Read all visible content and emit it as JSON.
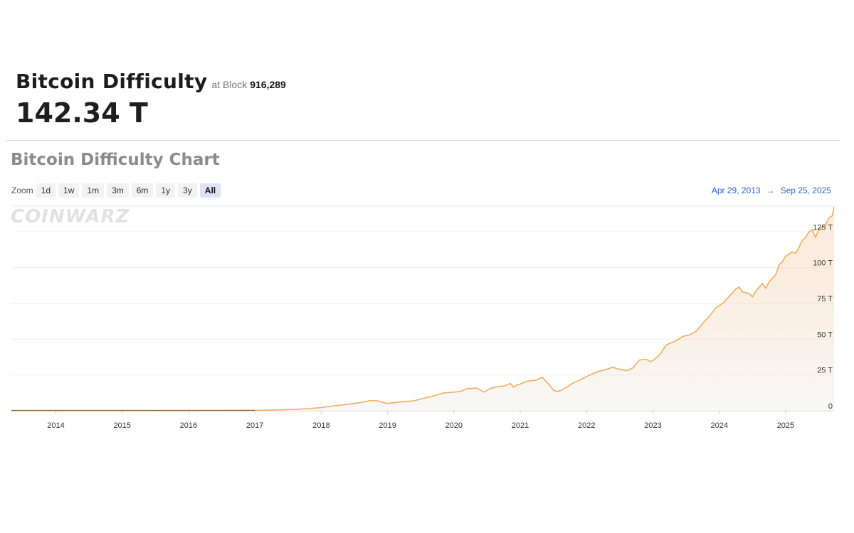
{
  "header": {
    "title": "Bitcoin Difficulty",
    "at_block_label": "at Block",
    "block_number": "916,289",
    "value": "142.34 T"
  },
  "chart_section": {
    "title": "Bitcoin Difficulty Chart",
    "zoom_label": "Zoom",
    "zoom_buttons": [
      "1d",
      "1w",
      "1m",
      "3m",
      "6m",
      "1y",
      "3y",
      "All"
    ],
    "active_zoom": "All",
    "range_start": "Apr 29, 2013",
    "range_end": "Sep 25, 2025",
    "watermark": "COINWARZ",
    "line_color": "#f0ad5c"
  },
  "chart_data": {
    "type": "area",
    "title": "",
    "xlabel": "",
    "ylabel": "",
    "x_tick_labels": [
      "2014",
      "2015",
      "2016",
      "2017",
      "2018",
      "2019",
      "2020",
      "2021",
      "2022",
      "2023",
      "2024",
      "2025"
    ],
    "y_tick_labels": [
      "0",
      "25 T",
      "50 T",
      "75 T",
      "100 T",
      "125 T"
    ],
    "ylim": [
      0,
      143
    ],
    "xlim": [
      2013.33,
      2025.73
    ],
    "grid": true,
    "series": [
      {
        "points": [
          [
            2013.33,
            0
          ],
          [
            2014.0,
            0.002
          ],
          [
            2015.0,
            0.04
          ],
          [
            2016.0,
            0.1
          ],
          [
            2016.5,
            0.2
          ],
          [
            2017.0,
            0.32
          ],
          [
            2017.3,
            0.5
          ],
          [
            2017.6,
            0.92
          ],
          [
            2017.8,
            1.5
          ],
          [
            2018.0,
            2.2
          ],
          [
            2018.2,
            3.5
          ],
          [
            2018.4,
            4.5
          ],
          [
            2018.6,
            5.8
          ],
          [
            2018.75,
            7.2
          ],
          [
            2018.85,
            6.9
          ],
          [
            2018.95,
            5.6
          ],
          [
            2019.0,
            5.1
          ],
          [
            2019.2,
            6.2
          ],
          [
            2019.4,
            7.0
          ],
          [
            2019.55,
            8.8
          ],
          [
            2019.7,
            10.5
          ],
          [
            2019.85,
            12.5
          ],
          [
            2019.95,
            12.8
          ],
          [
            2020.1,
            13.5
          ],
          [
            2020.2,
            15.5
          ],
          [
            2020.35,
            15.8
          ],
          [
            2020.45,
            13.0
          ],
          [
            2020.55,
            15.5
          ],
          [
            2020.65,
            16.8
          ],
          [
            2020.75,
            17.3
          ],
          [
            2020.85,
            19.0
          ],
          [
            2020.9,
            16.5
          ],
          [
            2020.95,
            18.0
          ],
          [
            2021.0,
            18.6
          ],
          [
            2021.1,
            20.6
          ],
          [
            2021.25,
            21.5
          ],
          [
            2021.33,
            23.5
          ],
          [
            2021.4,
            20.0
          ],
          [
            2021.45,
            17.5
          ],
          [
            2021.5,
            14.4
          ],
          [
            2021.55,
            13.5
          ],
          [
            2021.6,
            14.0
          ],
          [
            2021.7,
            16.5
          ],
          [
            2021.8,
            19.5
          ],
          [
            2021.9,
            21.5
          ],
          [
            2022.0,
            24.0
          ],
          [
            2022.15,
            27.0
          ],
          [
            2022.3,
            29.0
          ],
          [
            2022.4,
            30.5
          ],
          [
            2022.45,
            29.5
          ],
          [
            2022.6,
            28.0
          ],
          [
            2022.7,
            30.0
          ],
          [
            2022.8,
            35.5
          ],
          [
            2022.9,
            36.0
          ],
          [
            2022.95,
            34.5
          ],
          [
            2023.0,
            35.0
          ],
          [
            2023.1,
            39.0
          ],
          [
            2023.2,
            46.0
          ],
          [
            2023.35,
            49.0
          ],
          [
            2023.45,
            52.0
          ],
          [
            2023.55,
            53.0
          ],
          [
            2023.65,
            55.5
          ],
          [
            2023.75,
            61.0
          ],
          [
            2023.85,
            66.0
          ],
          [
            2023.95,
            72.0
          ],
          [
            2024.05,
            75.0
          ],
          [
            2024.15,
            80.0
          ],
          [
            2024.25,
            85.0
          ],
          [
            2024.3,
            86.5
          ],
          [
            2024.35,
            83.0
          ],
          [
            2024.45,
            82.0
          ],
          [
            2024.5,
            79.5
          ],
          [
            2024.55,
            83.5
          ],
          [
            2024.65,
            89.0
          ],
          [
            2024.7,
            85.5
          ],
          [
            2024.75,
            90.0
          ],
          [
            2024.85,
            95.0
          ],
          [
            2024.9,
            102.0
          ],
          [
            2024.95,
            104.0
          ],
          [
            2025.0,
            108.0
          ],
          [
            2025.1,
            111.0
          ],
          [
            2025.15,
            110.0
          ],
          [
            2025.2,
            114.0
          ],
          [
            2025.25,
            119.0
          ],
          [
            2025.3,
            121.0
          ],
          [
            2025.35,
            125.0
          ],
          [
            2025.4,
            126.5
          ],
          [
            2025.45,
            121.0
          ],
          [
            2025.5,
            127.0
          ],
          [
            2025.55,
            128.0
          ],
          [
            2025.6,
            129.5
          ],
          [
            2025.65,
            134.7
          ],
          [
            2025.7,
            136.0
          ],
          [
            2025.73,
            142.34
          ]
        ]
      }
    ]
  }
}
